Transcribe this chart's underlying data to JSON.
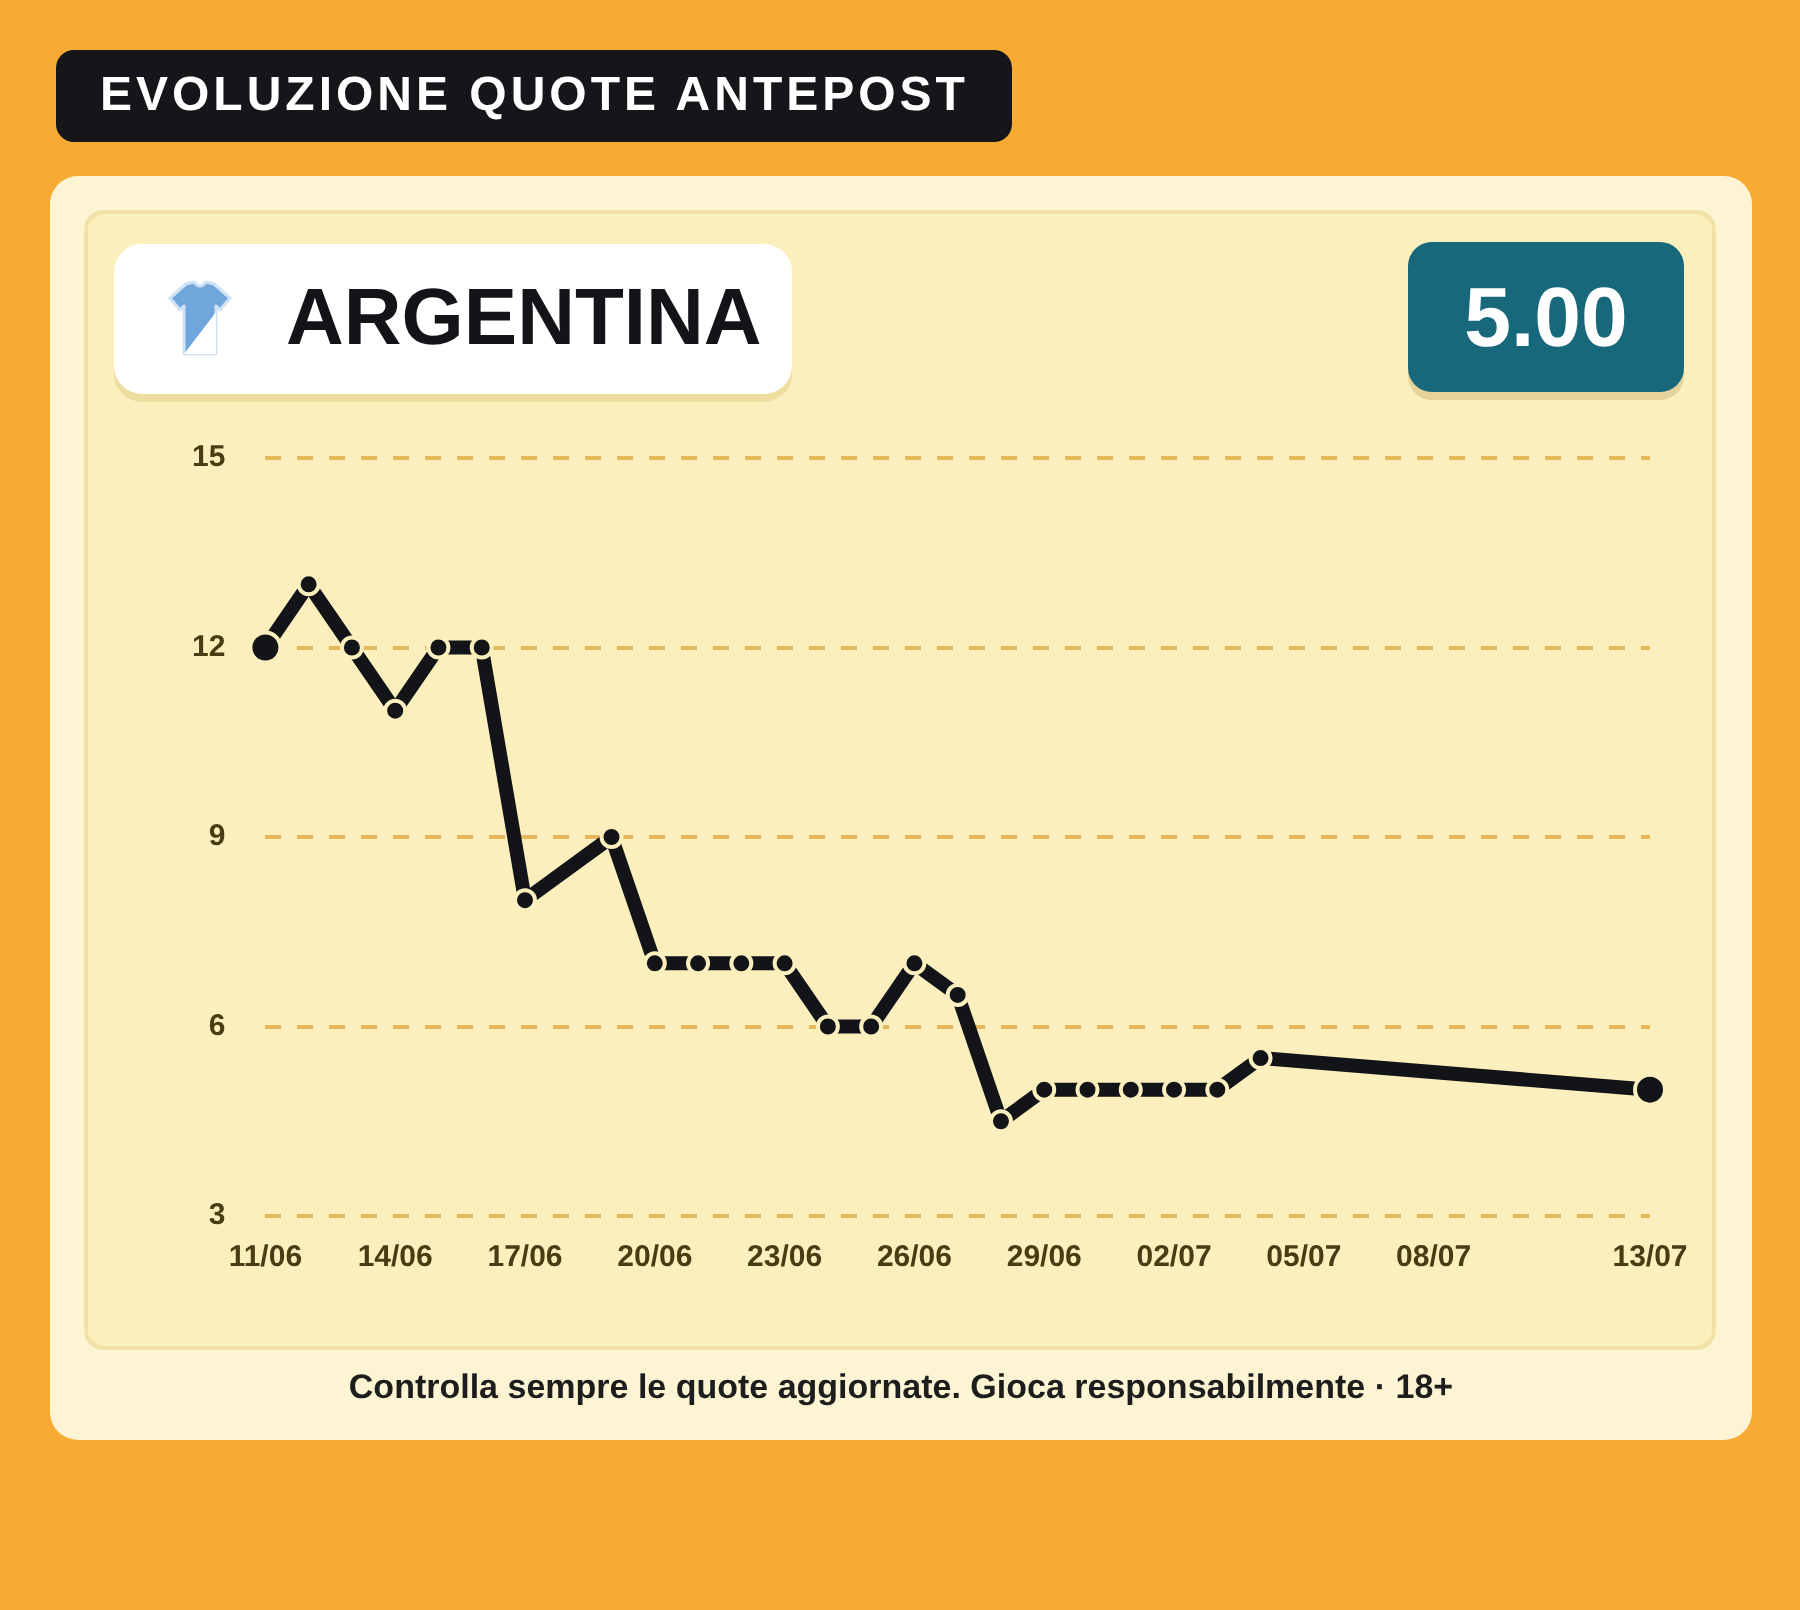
{
  "chart_data": {
    "type": "line",
    "title": "EVOLUZIONE QUOTE ANTEPOST",
    "subtitle": "ARGENTINA",
    "x": [
      "--06-11",
      "--06-12",
      "--06-13",
      "--06-14",
      "--06-15",
      "--06-16",
      "--06-17",
      "--06-19",
      "--06-20",
      "--06-21",
      "--06-22",
      "--06-23",
      "--06-24",
      "--06-25",
      "--06-26",
      "--06-27",
      "--06-28",
      "--06-29",
      "--06-30",
      "--07-01",
      "--07-02",
      "--07-03",
      "--07-04",
      "--07-13"
    ],
    "series": [
      {
        "color": "#121417",
        "values": [
          12,
          13,
          12,
          11,
          12,
          12,
          8,
          9,
          7,
          7,
          7,
          7,
          6,
          6,
          7,
          6.5,
          4.5,
          5,
          5,
          5,
          5,
          5,
          5.5,
          5
        ]
      }
    ],
    "xlim": [
      "--06-11",
      "--07-13"
    ],
    "xticks": [
      {
        "value": "--06-11",
        "label": "11/06"
      },
      {
        "value": "--06-14",
        "label": "14/06"
      },
      {
        "value": "--06-17",
        "label": "17/06"
      },
      {
        "value": "--06-20",
        "label": "20/06"
      },
      {
        "value": "--06-23",
        "label": "23/06"
      },
      {
        "value": "--06-26",
        "label": "26/06"
      },
      {
        "value": "--06-29",
        "label": "29/06"
      },
      {
        "value": "--07-02",
        "label": "02/07"
      },
      {
        "value": "--07-05",
        "label": "05/07"
      },
      {
        "value": "--07-08",
        "label": "08/07"
      },
      {
        "value": "--07-13",
        "label": "13/07"
      }
    ],
    "ylim": [
      3,
      15
    ],
    "yticks": [
      3,
      6,
      9,
      12,
      15
    ],
    "grid": "y",
    "legend": false,
    "marker": "circle",
    "line_style": "solid",
    "annotations": [
      "5.00",
      "Controlla sempre le quote aggiornate. Gioca responsabilmente · 18+"
    ]
  }
}
